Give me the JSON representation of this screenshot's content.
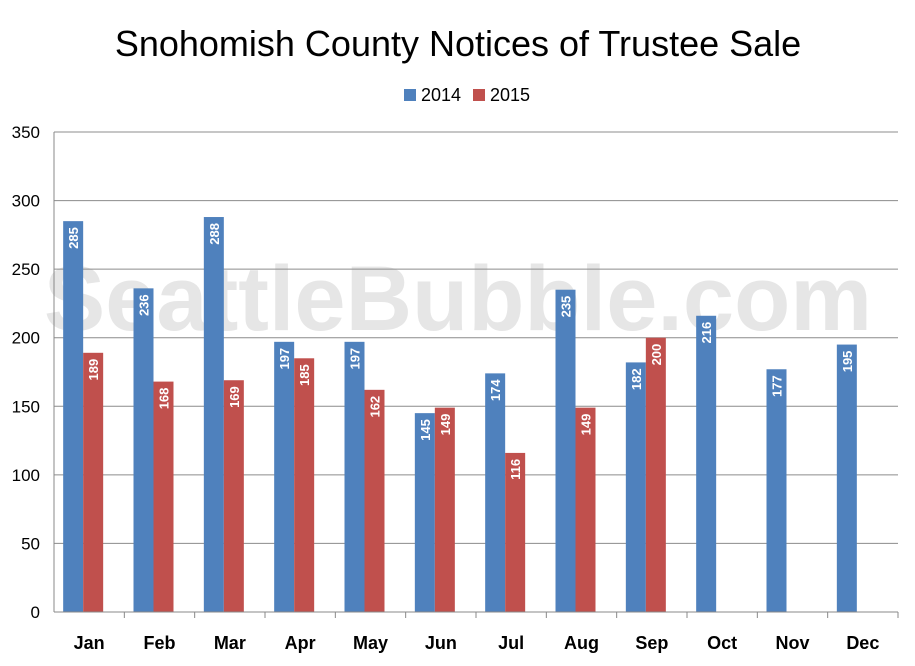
{
  "watermark": "SeattleBubble.com",
  "chart_data": {
    "type": "bar",
    "title": "Snohomish County Notices of Trustee Sale",
    "xlabel": "",
    "ylabel": "",
    "ylim": [
      0,
      350
    ],
    "yticks": [
      "0",
      "50",
      "100",
      "150",
      "200",
      "250",
      "300",
      "350"
    ],
    "grid": true,
    "legend_position": "top",
    "categories": [
      "Jan",
      "Feb",
      "Mar",
      "Apr",
      "May",
      "Jun",
      "Jul",
      "Aug",
      "Sep",
      "Oct",
      "Nov",
      "Dec"
    ],
    "series": [
      {
        "name": "2014",
        "color": "#4f81bd",
        "values": [
          285,
          236,
          288,
          197,
          197,
          145,
          174,
          235,
          182,
          216,
          177,
          195
        ]
      },
      {
        "name": "2015",
        "color": "#c0504d",
        "values": [
          189,
          168,
          169,
          185,
          162,
          149,
          116,
          149,
          200,
          null,
          null,
          null
        ]
      }
    ]
  }
}
